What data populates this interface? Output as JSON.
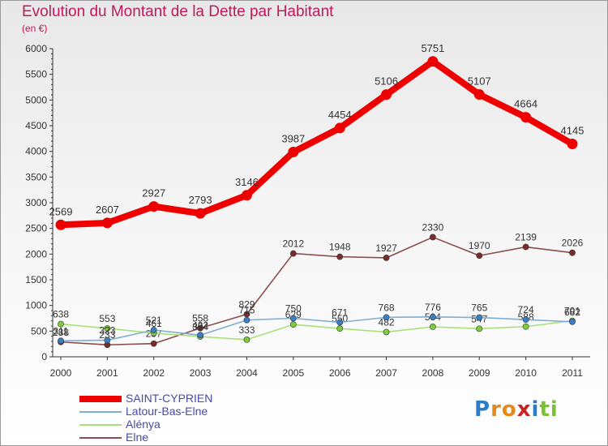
{
  "chart_data": {
    "type": "line",
    "title": "Evolution du Montant de la Dette par Habitant",
    "subtitle": "(en €)",
    "x": [
      "2000",
      "2001",
      "2002",
      "2003",
      "2004",
      "2005",
      "2006",
      "2007",
      "2008",
      "2009",
      "2010",
      "2011"
    ],
    "y_ticks": [
      "0",
      "500",
      "1000",
      "1500",
      "2000",
      "2500",
      "3000",
      "3500",
      "4000",
      "4500",
      "5000",
      "5500",
      "6000"
    ],
    "ylim": [
      0,
      6000
    ],
    "grid": false,
    "legend_position": "bottom-left",
    "series": [
      {
        "name": "SAINT-CYPRIEN",
        "color": "#ee0000",
        "emphasis": true,
        "values": [
          2569,
          2607,
          2927,
          2793,
          3146,
          3987,
          4454,
          5106,
          5751,
          5107,
          4664,
          4145
        ]
      },
      {
        "name": "Latour-Bas-Elne",
        "color": "#7faed3",
        "marker": "#3a7fc4",
        "values": [
          311,
          323,
          521,
          422,
          715,
          750,
          671,
          768,
          776,
          765,
          724,
          682
        ]
      },
      {
        "name": "Alénya",
        "color": "#a8e07a",
        "marker": "#7ccc3c",
        "values": [
          638,
          553,
          461,
          394,
          333,
          629,
          550,
          482,
          584,
          547,
          588,
          701
        ]
      },
      {
        "name": "Elne",
        "color": "#8a4b4b",
        "marker": "#7a2b2b",
        "values": [
          288,
          233,
          257,
          558,
          829,
          2012,
          1948,
          1927,
          2330,
          1970,
          2139,
          2026
        ]
      }
    ]
  },
  "logo": {
    "text": "Proxiti",
    "letters": [
      {
        "ch": "P",
        "color": "#2c7bc7"
      },
      {
        "ch": "r",
        "color": "#e38a1c"
      },
      {
        "ch": "o",
        "color": "#e38a1c"
      },
      {
        "ch": "x",
        "color": "#cc2222"
      },
      {
        "ch": "i",
        "color": "#2c7bc7"
      },
      {
        "ch": "t",
        "color": "#7cbf3a"
      },
      {
        "ch": "i",
        "color": "#7cbf3a"
      }
    ]
  }
}
